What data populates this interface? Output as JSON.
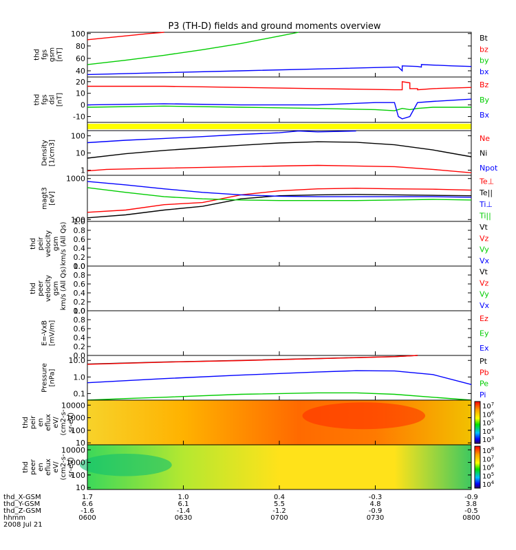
{
  "title": "P3 (TH-D) fields and ground moments overview",
  "colors": {
    "black": "#000000",
    "red": "#ff0000",
    "green": "#00cc00",
    "blue": "#0000ff",
    "yellow": "#ffff00"
  },
  "chart_data": [
    {
      "panel": "fgs_gsm_nT",
      "type": "line",
      "ylabel": [
        "thd",
        "fgs",
        "gsm",
        "[nT]"
      ],
      "ylim": [
        30,
        102
      ],
      "yticks": [
        40,
        60,
        80,
        100
      ],
      "legend": [
        {
          "label": "Bt",
          "color": "#000000"
        },
        {
          "label": "bz",
          "color": "#ff0000"
        },
        {
          "label": "by",
          "color": "#00cc00"
        },
        {
          "label": "bx",
          "color": "#0000ff"
        }
      ],
      "series": [
        {
          "name": "bz",
          "color": "#ff0000",
          "x": [
            0,
            0.08,
            0.16,
            0.2
          ],
          "y": [
            90,
            95,
            100,
            102
          ]
        },
        {
          "name": "by",
          "color": "#00cc00",
          "x": [
            0,
            0.1,
            0.2,
            0.3,
            0.4,
            0.5,
            0.55
          ],
          "y": [
            50,
            57,
            65,
            74,
            84,
            96,
            102
          ]
        },
        {
          "name": "bx",
          "color": "#0000ff",
          "x": [
            0,
            0.2,
            0.4,
            0.6,
            0.8,
            0.81,
            0.82,
            0.82,
            0.86,
            0.87,
            0.87,
            0.95,
            1.0
          ],
          "y": [
            34,
            37,
            40,
            43,
            46,
            46,
            40,
            48,
            47,
            46,
            50,
            48,
            47
          ]
        }
      ]
    },
    {
      "panel": "fgs_dsl_nT",
      "type": "line",
      "ylabel": [
        "thd",
        "fgs",
        "dsl",
        "[nT]"
      ],
      "ylim": [
        -15,
        24
      ],
      "yticks": [
        -10,
        0,
        10,
        20
      ],
      "legend": [
        {
          "label": "Bz",
          "color": "#ff0000"
        },
        {
          "label": "By",
          "color": "#00cc00"
        },
        {
          "label": "Bx",
          "color": "#0000ff"
        }
      ],
      "series": [
        {
          "name": "Bz",
          "color": "#ff0000",
          "x": [
            0,
            0.2,
            0.4,
            0.6,
            0.8,
            0.82,
            0.82,
            0.84,
            0.84,
            0.86,
            0.86,
            0.9,
            1.0
          ],
          "y": [
            16,
            16,
            15,
            14,
            13,
            13,
            20,
            19,
            14,
            14,
            13,
            14,
            15
          ]
        },
        {
          "name": "By",
          "color": "#00cc00",
          "x": [
            0,
            0.2,
            0.4,
            0.6,
            0.75,
            0.8,
            0.82,
            0.84,
            0.86,
            0.9,
            1.0
          ],
          "y": [
            -2,
            -1,
            -2,
            -3,
            -4,
            -5,
            -3,
            -4,
            -3,
            -2,
            -2
          ]
        },
        {
          "name": "Bx",
          "color": "#0000ff",
          "x": [
            0,
            0.2,
            0.4,
            0.6,
            0.75,
            0.8,
            0.81,
            0.82,
            0.84,
            0.86,
            0.9,
            1.0
          ],
          "y": [
            0,
            1,
            0,
            0,
            2,
            2,
            -10,
            -12,
            -10,
            2,
            3,
            5
          ]
        }
      ]
    },
    {
      "panel": "yellow_bar",
      "type": "bar"
    },
    {
      "panel": "density",
      "type": "line",
      "ylabel": [
        "Density",
        "[1/cm3]"
      ],
      "yscale": "log",
      "ylim": [
        0.5,
        200
      ],
      "yticks": [
        1,
        10,
        100
      ],
      "legend": [
        {
          "label": "Ne",
          "color": "#ff0000"
        },
        {
          "label": "Ni",
          "color": "#000000"
        },
        {
          "label": "Npot",
          "color": "#0000ff"
        }
      ],
      "series": [
        {
          "name": "Ne",
          "color": "#ff0000",
          "x": [
            0,
            0.05,
            0.2,
            0.4,
            0.6,
            0.8,
            0.9,
            1.0
          ],
          "y": [
            0.9,
            1.1,
            1.3,
            1.6,
            1.9,
            1.6,
            1.1,
            0.7
          ]
        },
        {
          "name": "Ni",
          "color": "#000000",
          "x": [
            0,
            0.1,
            0.2,
            0.3,
            0.4,
            0.5,
            0.6,
            0.7,
            0.8,
            0.9,
            1.0
          ],
          "y": [
            5,
            9,
            14,
            20,
            28,
            38,
            45,
            42,
            30,
            15,
            6
          ]
        },
        {
          "name": "Npot",
          "color": "#0000ff",
          "x": [
            0,
            0.1,
            0.2,
            0.3,
            0.4,
            0.5,
            0.55,
            0.6,
            0.7
          ],
          "y": [
            40,
            55,
            70,
            90,
            120,
            150,
            190,
            170,
            190
          ]
        }
      ]
    },
    {
      "panel": "temperature",
      "type": "line",
      "ylabel": [
        "magt3",
        "[eV]"
      ],
      "yscale": "log",
      "ylim": [
        90,
        1200
      ],
      "yticks": [
        100,
        1000
      ],
      "legend": [
        {
          "label": "Te⊥",
          "color": "#ff0000"
        },
        {
          "label": "Te||",
          "color": "#000000"
        },
        {
          "label": "Ti⊥",
          "color": "#0000ff"
        },
        {
          "label": "Ti||",
          "color": "#00cc00"
        }
      ],
      "series": [
        {
          "name": "Te⊥",
          "color": "#ff0000",
          "x": [
            0,
            0.1,
            0.2,
            0.3,
            0.4,
            0.5,
            0.6,
            0.7,
            0.8,
            0.9,
            1.0
          ],
          "y": [
            150,
            170,
            230,
            260,
            400,
            500,
            560,
            580,
            560,
            550,
            520
          ]
        },
        {
          "name": "Te||",
          "color": "#000000",
          "x": [
            0,
            0.1,
            0.2,
            0.3,
            0.4,
            0.5,
            0.6,
            0.7,
            0.8,
            0.9,
            1.0
          ],
          "y": [
            110,
            130,
            170,
            210,
            320,
            380,
            400,
            410,
            400,
            390,
            380
          ]
        },
        {
          "name": "Ti⊥",
          "color": "#0000ff",
          "x": [
            0,
            0.1,
            0.2,
            0.3,
            0.4,
            0.5,
            0.6,
            0.7,
            0.8,
            0.9,
            1.0
          ],
          "y": [
            850,
            700,
            560,
            460,
            400,
            370,
            360,
            360,
            360,
            360,
            350
          ]
        },
        {
          "name": "Ti||",
          "color": "#00cc00",
          "x": [
            0,
            0.1,
            0.2,
            0.3,
            0.4,
            0.5,
            0.6,
            0.7,
            0.8,
            0.9,
            1.0
          ],
          "y": [
            600,
            460,
            360,
            320,
            300,
            290,
            290,
            290,
            300,
            310,
            300
          ]
        }
      ]
    },
    {
      "panel": "peir_velocity",
      "type": "line",
      "ylabel": [
        "thd",
        "peir",
        "velocity",
        "gsm",
        "km/s (All Qs)"
      ],
      "ylim": [
        0,
        1
      ],
      "yticks": [
        0,
        0.2,
        0.4,
        0.6,
        0.8,
        1.0
      ],
      "legend": [
        {
          "label": "Vt",
          "color": "#000000"
        },
        {
          "label": "Vz",
          "color": "#ff0000"
        },
        {
          "label": "Vy",
          "color": "#00cc00"
        },
        {
          "label": "Vx",
          "color": "#0000ff"
        }
      ],
      "series": []
    },
    {
      "panel": "peer_velocity",
      "type": "line",
      "ylabel": [
        "thd",
        "peer",
        "velocity",
        "gsm",
        "km/s (All Qs)"
      ],
      "ylim": [
        0,
        1
      ],
      "yticks": [
        0,
        0.2,
        0.4,
        0.6,
        0.8,
        1.0
      ],
      "legend": [
        {
          "label": "Vt",
          "color": "#000000"
        },
        {
          "label": "Vz",
          "color": "#ff0000"
        },
        {
          "label": "Vy",
          "color": "#00cc00"
        },
        {
          "label": "Vx",
          "color": "#0000ff"
        }
      ],
      "series": []
    },
    {
      "panel": "efield",
      "type": "line",
      "ylabel": [
        "E=-VxB",
        "[mV/m]"
      ],
      "ylim": [
        0,
        1
      ],
      "yticks": [
        0,
        0.2,
        0.4,
        0.6,
        0.8,
        1.0
      ],
      "legend": [
        {
          "label": "Ez",
          "color": "#ff0000"
        },
        {
          "label": "Ey",
          "color": "#00cc00"
        },
        {
          "label": "Ex",
          "color": "#0000ff"
        }
      ],
      "series": []
    },
    {
      "panel": "pressure",
      "type": "line",
      "ylabel": [
        "Pressure",
        "[nPa]"
      ],
      "yscale": "log",
      "ylim": [
        0.04,
        20
      ],
      "yticks": [
        0.1,
        1.0,
        10.0
      ],
      "yticklabels": [
        "0.1",
        "1.0",
        "10.0"
      ],
      "legend": [
        {
          "label": "Pt",
          "color": "#000000"
        },
        {
          "label": "Pb",
          "color": "#ff0000"
        },
        {
          "label": "Pe",
          "color": "#00cc00"
        },
        {
          "label": "Pi",
          "color": "#0000ff"
        }
      ],
      "series": [
        {
          "name": "Pt",
          "color": "#000000",
          "x": [
            0,
            0.2,
            0.4,
            0.6,
            0.8,
            0.86
          ],
          "y": [
            6,
            8,
            10,
            13,
            17,
            20
          ]
        },
        {
          "name": "Pb",
          "color": "#ff0000",
          "x": [
            0,
            0.2,
            0.4,
            0.6,
            0.8,
            0.86
          ],
          "y": [
            5.8,
            7.8,
            9.8,
            12.8,
            16.8,
            20
          ]
        },
        {
          "name": "Pi",
          "color": "#0000ff",
          "x": [
            0,
            0.2,
            0.4,
            0.6,
            0.7,
            0.8,
            0.9,
            1.0
          ],
          "y": [
            0.45,
            0.8,
            1.3,
            2.0,
            2.4,
            2.3,
            1.4,
            0.35
          ]
        },
        {
          "name": "Pe",
          "color": "#00cc00",
          "x": [
            0,
            0.1,
            0.2,
            0.4,
            0.6,
            0.7,
            0.8,
            0.9,
            1.0
          ],
          "y": [
            0.04,
            0.05,
            0.06,
            0.09,
            0.11,
            0.11,
            0.09,
            0.06,
            0.04
          ]
        }
      ]
    },
    {
      "panel": "peir_spectrogram",
      "type": "heatmap",
      "ylabel": [
        "thd",
        "peir",
        "en",
        "eflux",
        "eV/",
        "(cm2-s-",
        "sr-eV)"
      ],
      "yscale": "log",
      "ylim": [
        7,
        25000
      ],
      "yticks": [
        10,
        100,
        1000,
        10000
      ],
      "zlim": [
        1000,
        10000000
      ],
      "colorbar_labels": [
        "10^7",
        "10^6",
        "10^5",
        "10^4",
        "10^3"
      ],
      "description": "mostly yellow/orange, red core near 0700-0740 at 1000-10000 eV"
    },
    {
      "panel": "peer_spectrogram",
      "type": "heatmap",
      "ylabel": [
        "thd",
        "peer",
        "en",
        "eflux",
        "eV/",
        "(cm2-s-",
        "sr-eV)"
      ],
      "yscale": "log",
      "ylim": [
        7,
        25000
      ],
      "yticks": [
        10,
        100,
        1000,
        10000
      ],
      "zlim": [
        10000,
        100000000
      ],
      "colorbar_labels": [
        "10^8",
        "10^7",
        "10^6",
        "10^5",
        "10^4"
      ],
      "description": "green band 30-3000 eV early, yellow elsewhere"
    }
  ],
  "xaxis": {
    "rows": [
      {
        "label": "thd_X-GSM",
        "values": [
          "1.7",
          "1.0",
          "0.4",
          "-0.3",
          "-0.9"
        ]
      },
      {
        "label": "thd_Y-GSM",
        "values": [
          "6.6",
          "6.1",
          "5.5",
          "4.8",
          "3.8"
        ]
      },
      {
        "label": "thd_Z-GSM",
        "values": [
          "-1.6",
          "-1.4",
          "-1.2",
          "-0.9",
          "-0.5"
        ]
      },
      {
        "label": "hhmm",
        "values": [
          "0600",
          "0630",
          "0700",
          "0730",
          "0800"
        ]
      }
    ],
    "date": "2008 Jul 21"
  }
}
